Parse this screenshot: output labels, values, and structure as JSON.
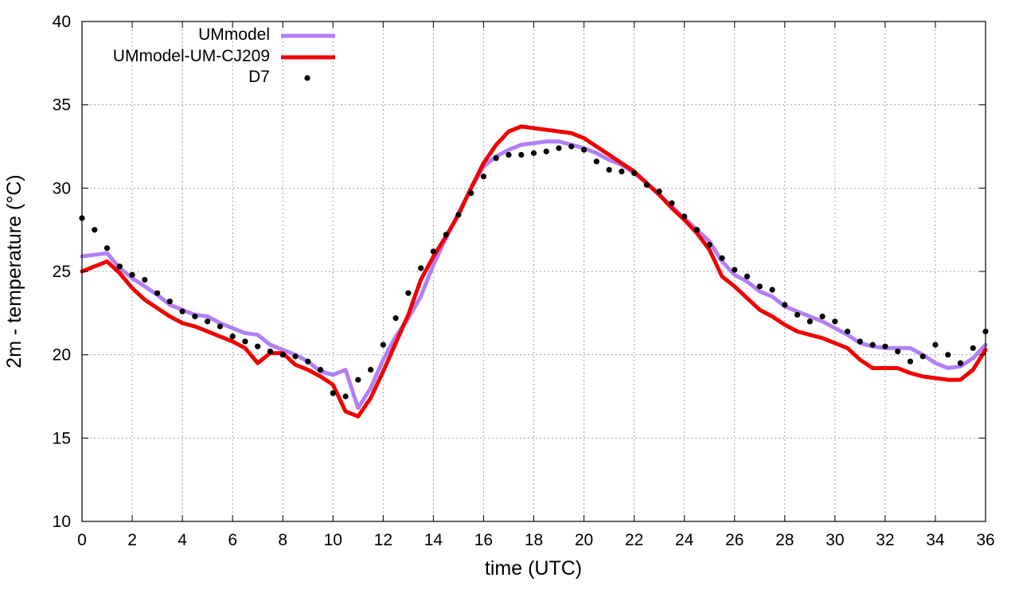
{
  "chart_data": {
    "type": "line",
    "title": "",
    "xlabel": "time (UTC)",
    "ylabel": "2m - temperature (°C)",
    "xlim": [
      0,
      36
    ],
    "ylim": [
      10,
      40
    ],
    "xticks": [
      0,
      2,
      4,
      6,
      8,
      10,
      12,
      14,
      16,
      18,
      20,
      22,
      24,
      26,
      28,
      30,
      32,
      34,
      36
    ],
    "yticks": [
      10,
      15,
      20,
      25,
      30,
      35,
      40
    ],
    "grid": true,
    "legend_position": "top-left",
    "series": [
      {
        "name": "UMmodel",
        "style": "line",
        "color": "#b27ff5",
        "x": [
          0,
          0.5,
          1,
          1.5,
          2,
          2.5,
          3,
          3.5,
          4,
          4.5,
          5,
          5.5,
          6,
          6.5,
          7,
          7.5,
          8,
          8.5,
          9,
          9.5,
          10,
          10.5,
          11,
          11.5,
          12,
          12.5,
          13,
          13.5,
          14,
          14.5,
          15,
          15.5,
          16,
          16.5,
          17,
          17.5,
          18,
          18.5,
          19,
          19.5,
          20,
          20.5,
          21,
          21.5,
          22,
          22.5,
          23,
          23.5,
          24,
          24.5,
          25,
          25.5,
          26,
          26.5,
          27,
          27.5,
          28,
          28.5,
          29,
          29.5,
          30,
          30.5,
          31,
          31.5,
          32,
          32.5,
          33,
          33.5,
          34,
          34.5,
          35,
          35.5,
          36
        ],
        "values": [
          25.9,
          26.0,
          26.1,
          25.2,
          24.6,
          24.1,
          23.6,
          23.0,
          22.7,
          22.4,
          22.3,
          21.9,
          21.6,
          21.3,
          21.2,
          20.6,
          20.3,
          20.0,
          19.6,
          19.0,
          18.8,
          19.1,
          16.8,
          18.0,
          19.7,
          21.1,
          22.2,
          23.5,
          25.4,
          27.0,
          28.5,
          30.0,
          31.3,
          31.9,
          32.3,
          32.6,
          32.7,
          32.8,
          32.8,
          32.6,
          32.4,
          32.1,
          31.7,
          31.4,
          30.9,
          30.3,
          29.6,
          28.9,
          28.2,
          27.5,
          26.8,
          25.6,
          24.8,
          24.4,
          23.8,
          23.5,
          22.9,
          22.6,
          22.3,
          22.0,
          21.6,
          21.2,
          20.7,
          20.5,
          20.4,
          20.4,
          20.4,
          20.0,
          19.5,
          19.2,
          19.3,
          19.8,
          20.6
        ]
      },
      {
        "name": "UMmodel-UM-CJ209",
        "style": "line",
        "color": "#f00000",
        "x": [
          0,
          0.5,
          1,
          1.5,
          2,
          2.5,
          3,
          3.5,
          4,
          4.5,
          5,
          5.5,
          6,
          6.5,
          7,
          7.5,
          8,
          8.5,
          9,
          9.5,
          10,
          10.5,
          11,
          11.5,
          12,
          12.5,
          13,
          13.5,
          14,
          14.5,
          15,
          15.5,
          16,
          16.5,
          17,
          17.5,
          18,
          18.5,
          19,
          19.5,
          20,
          20.5,
          21,
          21.5,
          22,
          22.5,
          23,
          23.5,
          24,
          24.5,
          25,
          25.5,
          26,
          26.5,
          27,
          27.5,
          28,
          28.5,
          29,
          29.5,
          30,
          30.5,
          31,
          31.5,
          32,
          32.5,
          33,
          33.5,
          34,
          34.5,
          35,
          35.5,
          36
        ],
        "values": [
          25.0,
          25.3,
          25.6,
          24.9,
          24.0,
          23.3,
          22.8,
          22.3,
          21.9,
          21.7,
          21.4,
          21.1,
          20.8,
          20.4,
          19.5,
          20.1,
          20.1,
          19.4,
          19.1,
          18.7,
          18.2,
          16.6,
          16.3,
          17.4,
          19.0,
          20.7,
          22.4,
          24.5,
          25.9,
          27.1,
          28.4,
          30.0,
          31.5,
          32.6,
          33.4,
          33.7,
          33.6,
          33.5,
          33.4,
          33.3,
          33.0,
          32.5,
          32.0,
          31.5,
          31.0,
          30.3,
          29.6,
          28.8,
          28.1,
          27.3,
          26.3,
          24.7,
          24.1,
          23.4,
          22.7,
          22.3,
          21.8,
          21.4,
          21.2,
          21.0,
          20.7,
          20.4,
          19.7,
          19.2,
          19.2,
          19.2,
          18.9,
          18.7,
          18.6,
          18.5,
          18.5,
          19.1,
          20.3
        ]
      },
      {
        "name": "D7",
        "style": "points",
        "color": "#000000",
        "x": [
          0,
          0.5,
          1,
          1.5,
          2,
          2.5,
          3,
          3.5,
          4,
          4.5,
          5,
          5.5,
          6,
          6.5,
          7,
          7.5,
          8,
          8.5,
          9,
          9.5,
          10,
          10.5,
          11,
          11.5,
          12,
          12.5,
          13,
          13.5,
          14,
          14.5,
          15,
          15.5,
          16,
          16.5,
          17,
          17.5,
          18,
          18.5,
          19,
          19.5,
          20,
          20.5,
          21,
          21.5,
          22,
          22.5,
          23,
          23.5,
          24,
          24.5,
          25,
          25.5,
          26,
          26.5,
          27,
          27.5,
          28,
          28.5,
          29,
          29.5,
          30,
          30.5,
          31,
          31.5,
          32,
          32.5,
          33,
          33.5,
          34,
          34.5,
          35,
          35.5,
          36
        ],
        "values": [
          28.2,
          27.5,
          26.4,
          25.3,
          24.8,
          24.5,
          23.7,
          23.2,
          22.6,
          22.3,
          22.0,
          21.7,
          21.1,
          20.8,
          20.5,
          20.2,
          20.0,
          19.9,
          19.6,
          19.1,
          17.7,
          17.5,
          18.5,
          19.1,
          20.6,
          22.2,
          23.7,
          25.2,
          26.2,
          27.2,
          28.4,
          29.7,
          30.7,
          31.8,
          32.0,
          32.0,
          32.1,
          32.2,
          32.4,
          32.5,
          32.3,
          31.6,
          31.1,
          31.0,
          30.9,
          30.2,
          29.8,
          29.1,
          28.3,
          27.5,
          26.6,
          25.8,
          25.1,
          24.7,
          24.1,
          23.9,
          23.0,
          22.4,
          22.0,
          22.3,
          22.0,
          21.4,
          20.8,
          20.6,
          20.5,
          20.2,
          19.6,
          19.9,
          20.6,
          20.0,
          19.5,
          20.4,
          21.4
        ]
      }
    ]
  }
}
